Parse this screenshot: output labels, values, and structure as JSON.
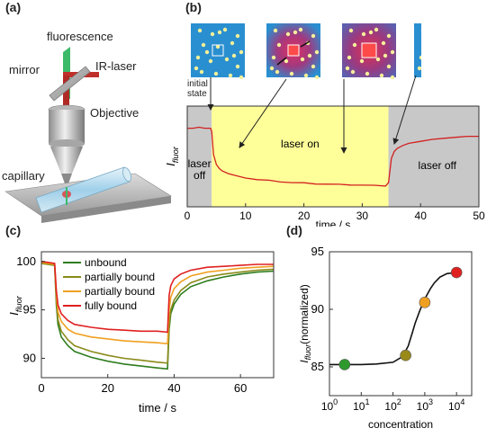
{
  "panels": {
    "a": {
      "label": "(a)",
      "texts": {
        "fluorescence": "fluorescence",
        "mirror": "mirror",
        "ir_laser": "IR-laser",
        "objective": "Objective",
        "capillary": "capillary"
      }
    },
    "b": {
      "label": "(b)",
      "initial_state": "initial\nstate"
    },
    "c": {
      "label": "(c)"
    },
    "d": {
      "label": "(d)"
    }
  },
  "colors": {
    "unbound": "#2e7d1e",
    "partially_bound_1": "#8a8a1a",
    "partially_bound_2": "#f0a020",
    "fully_bound": "#e02020",
    "region_gray": "#c8c8c8",
    "region_yellow": "#ffff99",
    "thumb_blue": "#2a8fd0",
    "dot_yellow": "#f6f09a",
    "laser_red": "#c0302a",
    "fluor_green": "#3cba6a"
  },
  "chart_data": [
    {
      "id": "b",
      "type": "line",
      "title": "",
      "xlabel": "time / s",
      "ylabel": "I_fluor",
      "xlim": [
        0,
        50
      ],
      "xticks": [
        0,
        10,
        20,
        30,
        40,
        50
      ],
      "ylim": [
        0,
        1
      ],
      "regions": [
        {
          "from": 0,
          "to": 4.2,
          "label": "laser\noff",
          "color": "gray"
        },
        {
          "from": 4.2,
          "to": 34.5,
          "label": "laser on",
          "color": "yellow"
        },
        {
          "from": 34.5,
          "to": 50,
          "label": "laser off",
          "color": "gray"
        }
      ],
      "series": [
        {
          "x": [
            0,
            1,
            2,
            3,
            4,
            4.2,
            4.5,
            5,
            5.5,
            6,
            7,
            8,
            10,
            12,
            14,
            16,
            18,
            20,
            22,
            24,
            26,
            28,
            30,
            32,
            34,
            34.5,
            35,
            35.5,
            36,
            37,
            38,
            40,
            42,
            44,
            46,
            48,
            50
          ],
          "y": [
            0.78,
            0.78,
            0.79,
            0.78,
            0.78,
            0.75,
            0.52,
            0.42,
            0.38,
            0.36,
            0.33,
            0.31,
            0.29,
            0.27,
            0.26,
            0.25,
            0.24,
            0.235,
            0.23,
            0.225,
            0.22,
            0.22,
            0.215,
            0.21,
            0.21,
            0.24,
            0.48,
            0.55,
            0.58,
            0.61,
            0.63,
            0.65,
            0.67,
            0.68,
            0.69,
            0.7,
            0.7
          ]
        }
      ]
    },
    {
      "id": "c",
      "type": "line",
      "title": "",
      "xlabel": "time / s",
      "ylabel": "I_fluor",
      "xlim": [
        0,
        70
      ],
      "ylim": [
        88,
        101
      ],
      "xticks": [
        0,
        20,
        40,
        60
      ],
      "yticks": [
        90,
        95,
        100
      ],
      "legend_position": "top-left",
      "series": [
        {
          "name": "unbound",
          "x": [
            0,
            2,
            4,
            4.5,
            5,
            6,
            8,
            10,
            15,
            20,
            25,
            30,
            35,
            38,
            38.5,
            39,
            40,
            42,
            45,
            50,
            55,
            60,
            65,
            70
          ],
          "y": [
            99.8,
            99.7,
            99.6,
            95.5,
            93.5,
            92.2,
            91.3,
            90.7,
            90.1,
            89.7,
            89.4,
            89.2,
            89.0,
            88.9,
            93,
            94.6,
            95.6,
            96.6,
            97.4,
            98.0,
            98.4,
            98.7,
            98.9,
            99.0
          ]
        },
        {
          "name": "partially bound",
          "x": [
            0,
            2,
            4,
            4.5,
            5,
            6,
            8,
            10,
            15,
            20,
            25,
            30,
            35,
            38,
            38.5,
            39,
            40,
            42,
            45,
            50,
            55,
            60,
            65,
            70
          ],
          "y": [
            99.8,
            99.7,
            99.6,
            96.0,
            94.0,
            92.8,
            91.9,
            91.3,
            90.7,
            90.3,
            90.0,
            89.8,
            89.6,
            89.5,
            93.5,
            95.0,
            96.0,
            97.0,
            97.8,
            98.4,
            98.7,
            98.9,
            99.1,
            99.2
          ]
        },
        {
          "name": "partially bound",
          "x": [
            0,
            2,
            4,
            4.5,
            5,
            6,
            8,
            10,
            15,
            20,
            25,
            30,
            35,
            38,
            38.5,
            39,
            40,
            42,
            45,
            50,
            55,
            60,
            65,
            70
          ],
          "y": [
            99.9,
            99.8,
            99.7,
            96.5,
            94.8,
            93.8,
            93.0,
            92.6,
            92.2,
            92.0,
            91.8,
            91.7,
            91.6,
            91.5,
            95.0,
            96.3,
            97.2,
            97.9,
            98.5,
            98.9,
            99.1,
            99.3,
            99.4,
            99.5
          ]
        },
        {
          "name": "fully bound",
          "x": [
            0,
            2,
            4,
            4.5,
            5,
            6,
            8,
            10,
            15,
            20,
            25,
            30,
            35,
            38,
            38.5,
            39,
            40,
            42,
            45,
            50,
            55,
            60,
            65,
            70
          ],
          "y": [
            100.0,
            99.9,
            99.8,
            97.0,
            95.5,
            94.6,
            93.9,
            93.5,
            93.2,
            93.0,
            92.9,
            92.8,
            92.8,
            92.7,
            96.5,
            97.5,
            98.2,
            98.7,
            99.1,
            99.4,
            99.5,
            99.6,
            99.7,
            99.7
          ]
        }
      ]
    },
    {
      "id": "d",
      "type": "scatter",
      "title": "",
      "xlabel": "concentration",
      "ylabel": "I_fluor(normalized)",
      "x_scale": "log",
      "xlim": [
        1,
        30000
      ],
      "ylim": [
        82.5,
        95
      ],
      "yticks": [
        85,
        90,
        95
      ],
      "xtick_labels": [
        "10^0",
        "10^1",
        "10^2",
        "10^3",
        "10^4"
      ],
      "points": [
        {
          "x": 3,
          "y": 85.2,
          "color": "#2e9a2e"
        },
        {
          "x": 250,
          "y": 86.0,
          "color": "#9a8a1a"
        },
        {
          "x": 1000,
          "y": 90.6,
          "color": "#f0a020"
        },
        {
          "x": 10000,
          "y": 93.2,
          "color": "#e02020"
        }
      ],
      "fit_curve": {
        "x": [
          1,
          3,
          10,
          30,
          100,
          200,
          300,
          400,
          500,
          700,
          1000,
          1500,
          2000,
          3000,
          5000,
          10000
        ],
        "y": [
          85.2,
          85.2,
          85.2,
          85.25,
          85.4,
          85.9,
          86.8,
          87.9,
          88.8,
          89.9,
          90.9,
          91.8,
          92.3,
          92.8,
          93.1,
          93.2
        ]
      }
    }
  ]
}
